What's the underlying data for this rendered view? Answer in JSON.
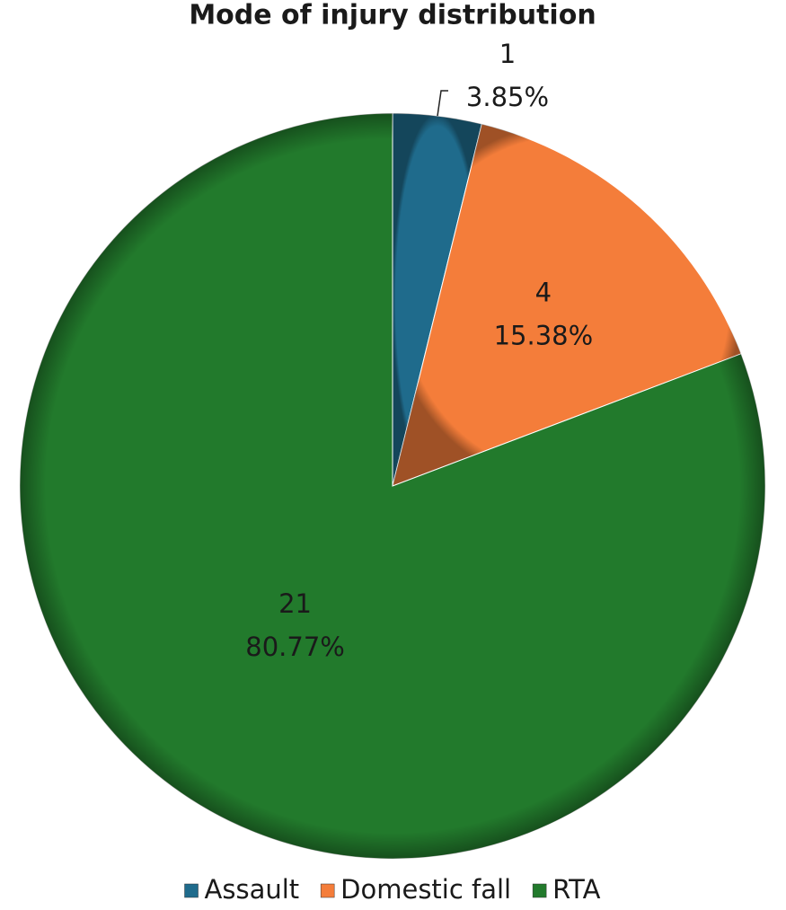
{
  "chart_data": {
    "type": "pie",
    "title": "Mode of injury distribution",
    "categories": [
      "Assault",
      "Domestic fall",
      "RTA"
    ],
    "values": [
      1,
      4,
      21
    ],
    "percentages": [
      3.85,
      15.38,
      80.77
    ],
    "percentage_labels": [
      "3.85%",
      "15.38%",
      "80.77%"
    ],
    "colors": [
      "#1f6b8c",
      "#f47d3a",
      "#227a2c"
    ],
    "legend": "bottom"
  }
}
